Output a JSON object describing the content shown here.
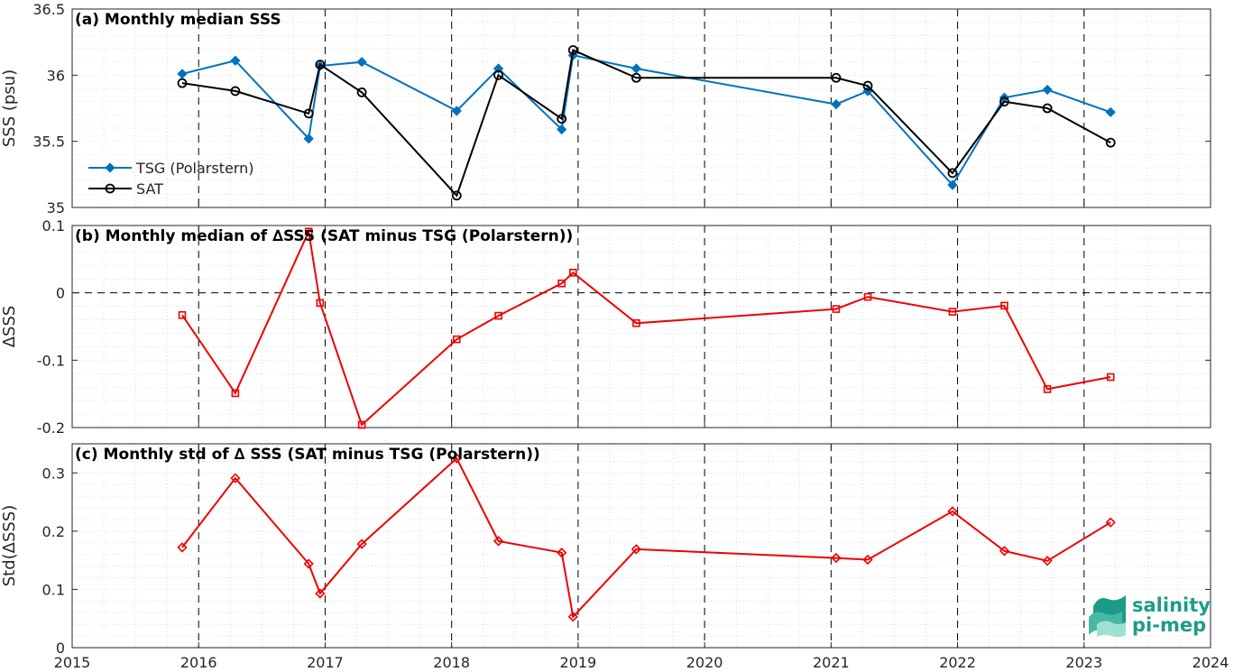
{
  "logo": {
    "line1": "salinity",
    "line2": "pi-mep",
    "color": "#1c9c88"
  },
  "colors": {
    "tsg": "#0072BD",
    "sat": "#000000",
    "delta": "#ee0000"
  },
  "chart_data": [
    {
      "type": "line",
      "title": "(a) Monthly median SSS",
      "xlabel": "",
      "ylabel": "SSS (psu)",
      "xlim": [
        2015,
        2024
      ],
      "ylim": [
        35,
        36.5
      ],
      "yticks": [
        "35",
        "35.5",
        "36",
        "36.5"
      ],
      "legend": "left",
      "series": [
        {
          "name": "TSG (Polarstern)",
          "marker": "diamond",
          "x": [
            2015.87,
            2016.29,
            2016.87,
            2016.96,
            2017.29,
            2018.04,
            2018.37,
            2018.87,
            2018.96,
            2019.46,
            2021.04,
            2021.29,
            2021.96,
            2022.37,
            2022.71,
            2023.21
          ],
          "y": [
            36.01,
            36.11,
            35.52,
            36.07,
            36.1,
            35.73,
            36.05,
            35.59,
            36.15,
            36.05,
            35.78,
            35.88,
            35.17,
            35.83,
            35.89,
            35.72
          ]
        },
        {
          "name": "SAT",
          "marker": "circle",
          "x": [
            2015.87,
            2016.29,
            2016.87,
            2016.96,
            2017.29,
            2018.04,
            2018.37,
            2018.87,
            2018.96,
            2019.46,
            2021.04,
            2021.29,
            2021.96,
            2022.37,
            2022.71,
            2023.21
          ],
          "y": [
            35.94,
            35.88,
            35.71,
            36.08,
            35.87,
            35.09,
            36.0,
            35.67,
            36.19,
            35.98,
            35.98,
            35.92,
            35.26,
            35.8,
            35.75,
            35.49
          ]
        }
      ]
    },
    {
      "type": "line",
      "title": "(b) Monthly median of ∆SSS (SAT minus TSG (Polarstern))",
      "xlabel": "",
      "ylabel": "ΔSSS",
      "xlim": [
        2015,
        2024
      ],
      "ylim": [
        -0.2,
        0.1
      ],
      "yticks": [
        "-0.2",
        "-0.1",
        "0",
        "0.1"
      ],
      "reference_line": 0,
      "series": [
        {
          "marker": "square",
          "x": [
            2015.87,
            2016.29,
            2016.87,
            2016.96,
            2017.29,
            2018.04,
            2018.37,
            2018.87,
            2018.96,
            2019.46,
            2021.04,
            2021.29,
            2021.96,
            2022.37,
            2022.71,
            2023.21
          ],
          "y": [
            -0.033,
            -0.149,
            0.091,
            -0.015,
            -0.196,
            -0.069,
            -0.034,
            0.014,
            0.03,
            -0.045,
            -0.024,
            -0.006,
            -0.028,
            -0.019,
            -0.143,
            -0.125
          ]
        }
      ]
    },
    {
      "type": "line",
      "title": "(c) Monthly std of ∆ SSS (SAT minus TSG (Polarstern))",
      "xlabel": "",
      "ylabel": "Std(ΔSSS)",
      "xlim": [
        2015,
        2024
      ],
      "ylim": [
        0,
        0.35
      ],
      "yticks": [
        "0",
        "0.1",
        "0.2",
        "0.3"
      ],
      "xticks": [
        "2015",
        "2016",
        "2017",
        "2018",
        "2019",
        "2020",
        "2021",
        "2022",
        "2023",
        "2024"
      ],
      "series": [
        {
          "marker": "diamond",
          "x": [
            2015.87,
            2016.29,
            2016.87,
            2016.96,
            2017.29,
            2018.04,
            2018.37,
            2018.87,
            2018.96,
            2019.46,
            2021.04,
            2021.29,
            2021.96,
            2022.37,
            2022.71,
            2023.21
          ],
          "y": [
            0.172,
            0.291,
            0.144,
            0.093,
            0.178,
            0.325,
            0.183,
            0.163,
            0.053,
            0.169,
            0.154,
            0.151,
            0.234,
            0.166,
            0.149,
            0.215
          ]
        }
      ]
    }
  ]
}
